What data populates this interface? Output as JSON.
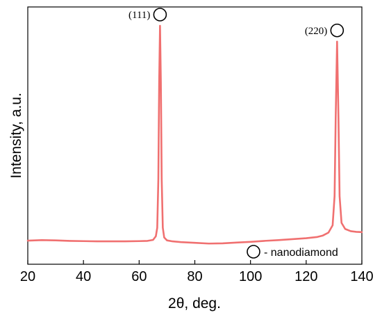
{
  "chart_data": {
    "type": "line",
    "xlabel": "2θ, deg.",
    "ylabel": "Intensity, a.u.",
    "xlim": [
      20,
      140
    ],
    "xticks": [
      20,
      40,
      60,
      80,
      100,
      120,
      140
    ],
    "ylim": [
      0,
      100
    ],
    "y_ticks_shown": false,
    "grid": false,
    "series_color": "#f07070",
    "series": [
      {
        "values": [
          [
            20,
            9.7
          ],
          [
            25,
            9.9
          ],
          [
            30,
            9.8
          ],
          [
            35,
            9.6
          ],
          [
            40,
            9.5
          ],
          [
            45,
            9.4
          ],
          [
            50,
            9.4
          ],
          [
            55,
            9.4
          ],
          [
            60,
            9.5
          ],
          [
            63,
            9.6
          ],
          [
            65,
            10.0
          ],
          [
            66,
            11.5
          ],
          [
            66.5,
            15.0
          ],
          [
            66.9,
            35.0
          ],
          [
            67.2,
            75.0
          ],
          [
            67.5,
            98.0
          ],
          [
            67.8,
            75.0
          ],
          [
            68.1,
            35.0
          ],
          [
            68.5,
            15.0
          ],
          [
            69,
            11.0
          ],
          [
            70,
            9.8
          ],
          [
            72,
            9.4
          ],
          [
            75,
            9.1
          ],
          [
            80,
            8.8
          ],
          [
            85,
            8.5
          ],
          [
            90,
            8.6
          ],
          [
            95,
            8.9
          ],
          [
            100,
            9.2
          ],
          [
            105,
            9.6
          ],
          [
            110,
            9.9
          ],
          [
            115,
            10.3
          ],
          [
            120,
            10.7
          ],
          [
            124,
            11.2
          ],
          [
            126,
            11.8
          ],
          [
            128,
            13.0
          ],
          [
            129.5,
            16.0
          ],
          [
            130.2,
            28.0
          ],
          [
            130.6,
            60.0
          ],
          [
            131.1,
            91.5
          ],
          [
            131.6,
            60.0
          ],
          [
            132.0,
            28.0
          ],
          [
            132.7,
            17.0
          ],
          [
            134,
            14.5
          ],
          [
            136,
            13.6
          ],
          [
            138,
            13.3
          ],
          [
            140,
            13.2
          ]
        ]
      }
    ],
    "annotations": [
      {
        "text": "(111)",
        "x": 67.5,
        "marker": "open-circle"
      },
      {
        "text": "(220)",
        "x": 131.1,
        "marker": "open-circle"
      }
    ],
    "legend": {
      "position": "bottom-right",
      "marker": "open-circle",
      "text": "- nanodiamond"
    }
  }
}
